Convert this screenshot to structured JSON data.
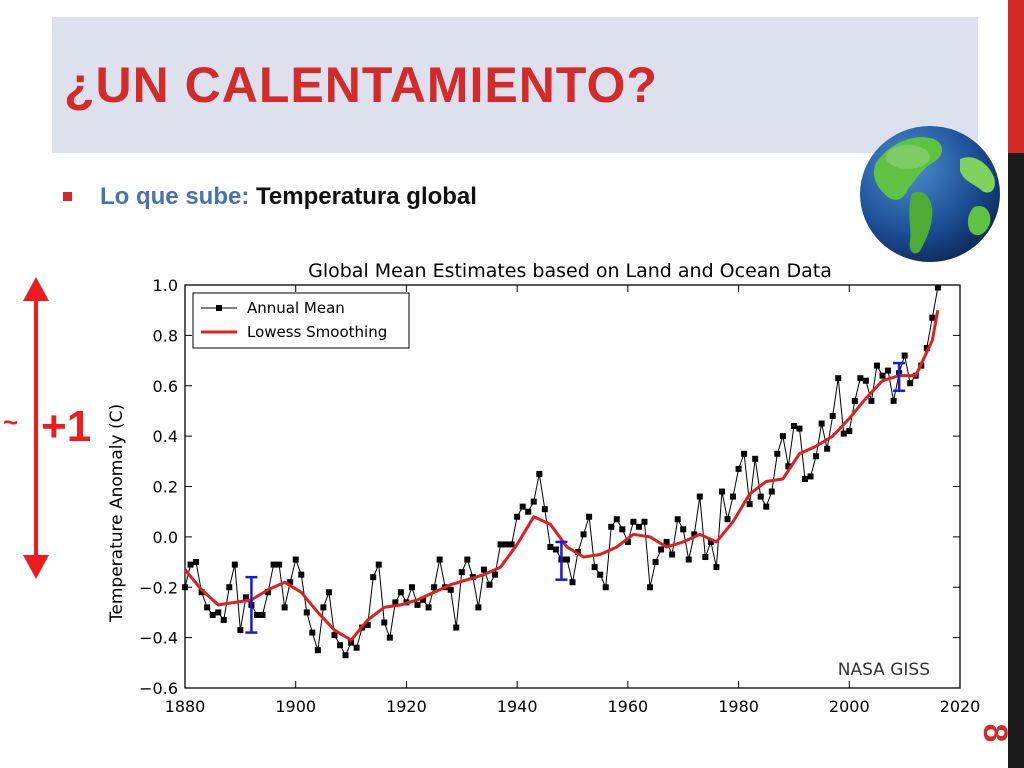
{
  "slide": {
    "title": "¿UN CALENTAMIENTO?",
    "bullet_label": "Lo que sube:",
    "bullet_value": "Temperatura global",
    "annotation_approx": "~",
    "annotation_value": "+1",
    "page_number": "8"
  },
  "colors": {
    "title": "#d42a2a",
    "title_band": "#dde1ee",
    "bullet_label": "#4a72b0",
    "arrow": "#ee1c1c",
    "annual_mean": "#000000",
    "smoothing": "#e02020",
    "error_bars": "#1a1ad8"
  },
  "icons": [
    "globe-icon",
    "double-arrow-icon",
    "bullet-square-icon"
  ],
  "chart_data": {
    "type": "line",
    "title": "Global Mean Estimates based on Land and Ocean Data",
    "xlabel": "",
    "ylabel": "Temperature Anomaly (C)",
    "xlim": [
      1880,
      2020
    ],
    "ylim": [
      -0.6,
      1.0
    ],
    "x_ticks": [
      "1880",
      "1900",
      "1920",
      "1940",
      "1960",
      "1980",
      "2000",
      "2020"
    ],
    "y_ticks": [
      "1.0",
      "0.8",
      "0.6",
      "0.4",
      "0.2",
      "0.0",
      "−0.2",
      "−0.4",
      "−0.6"
    ],
    "legend_position": "top-left",
    "grid": false,
    "credit": "NASA GISS",
    "series": [
      {
        "name": "Annual Mean",
        "style": "line-with-square-markers",
        "x": [
          1880,
          1881,
          1882,
          1883,
          1884,
          1885,
          1886,
          1887,
          1888,
          1889,
          1890,
          1891,
          1892,
          1893,
          1894,
          1895,
          1896,
          1897,
          1898,
          1899,
          1900,
          1901,
          1902,
          1903,
          1904,
          1905,
          1906,
          1907,
          1908,
          1909,
          1910,
          1911,
          1912,
          1913,
          1914,
          1915,
          1916,
          1917,
          1918,
          1919,
          1920,
          1921,
          1922,
          1923,
          1924,
          1925,
          1926,
          1927,
          1928,
          1929,
          1930,
          1931,
          1932,
          1933,
          1934,
          1935,
          1936,
          1937,
          1938,
          1939,
          1940,
          1941,
          1942,
          1943,
          1944,
          1945,
          1946,
          1947,
          1948,
          1949,
          1950,
          1951,
          1952,
          1953,
          1954,
          1955,
          1956,
          1957,
          1958,
          1959,
          1960,
          1961,
          1962,
          1963,
          1964,
          1965,
          1966,
          1967,
          1968,
          1969,
          1970,
          1971,
          1972,
          1973,
          1974,
          1975,
          1976,
          1977,
          1978,
          1979,
          1980,
          1981,
          1982,
          1983,
          1984,
          1985,
          1986,
          1987,
          1988,
          1989,
          1990,
          1991,
          1992,
          1993,
          1994,
          1995,
          1996,
          1997,
          1998,
          1999,
          2000,
          2001,
          2002,
          2003,
          2004,
          2005,
          2006,
          2007,
          2008,
          2009,
          2010,
          2011,
          2012,
          2013,
          2014,
          2015,
          2016
        ],
        "values": [
          -0.2,
          -0.11,
          -0.1,
          -0.22,
          -0.28,
          -0.31,
          -0.3,
          -0.33,
          -0.2,
          -0.11,
          -0.37,
          -0.24,
          -0.27,
          -0.31,
          -0.31,
          -0.22,
          -0.11,
          -0.11,
          -0.28,
          -0.18,
          -0.09,
          -0.15,
          -0.3,
          -0.38,
          -0.45,
          -0.28,
          -0.22,
          -0.39,
          -0.43,
          -0.47,
          -0.42,
          -0.44,
          -0.36,
          -0.35,
          -0.16,
          -0.11,
          -0.34,
          -0.4,
          -0.26,
          -0.22,
          -0.26,
          -0.2,
          -0.27,
          -0.25,
          -0.28,
          -0.2,
          -0.09,
          -0.2,
          -0.21,
          -0.36,
          -0.14,
          -0.09,
          -0.16,
          -0.28,
          -0.13,
          -0.19,
          -0.15,
          -0.03,
          -0.03,
          -0.03,
          0.08,
          0.12,
          0.1,
          0.14,
          0.25,
          0.11,
          -0.04,
          -0.05,
          -0.09,
          -0.09,
          -0.18,
          -0.06,
          0.01,
          0.08,
          -0.12,
          -0.15,
          -0.2,
          0.04,
          0.07,
          0.03,
          -0.02,
          0.06,
          0.04,
          0.06,
          -0.2,
          -0.1,
          -0.05,
          -0.02,
          -0.07,
          0.07,
          0.03,
          -0.09,
          0.01,
          0.16,
          -0.08,
          -0.02,
          -0.12,
          0.18,
          0.07,
          0.16,
          0.27,
          0.33,
          0.13,
          0.31,
          0.16,
          0.12,
          0.18,
          0.33,
          0.4,
          0.28,
          0.44,
          0.43,
          0.23,
          0.24,
          0.32,
          0.45,
          0.35,
          0.48,
          0.63,
          0.41,
          0.42,
          0.54,
          0.63,
          0.62,
          0.54,
          0.68,
          0.64,
          0.66,
          0.54,
          0.65,
          0.72,
          0.61,
          0.64,
          0.68,
          0.75,
          0.87,
          0.99
        ]
      },
      {
        "name": "Lowess Smoothing",
        "style": "line",
        "x": [
          1880,
          1883,
          1886,
          1889,
          1892,
          1895,
          1898,
          1901,
          1904,
          1907,
          1910,
          1913,
          1916,
          1919,
          1922,
          1925,
          1928,
          1931,
          1934,
          1937,
          1940,
          1943,
          1946,
          1949,
          1952,
          1955,
          1958,
          1961,
          1964,
          1967,
          1970,
          1973,
          1976,
          1979,
          1982,
          1985,
          1988,
          1991,
          1994,
          1997,
          2000,
          2003,
          2006,
          2009,
          2012,
          2015,
          2016
        ],
        "values": [
          -0.13,
          -0.21,
          -0.27,
          -0.26,
          -0.25,
          -0.21,
          -0.18,
          -0.22,
          -0.3,
          -0.37,
          -0.41,
          -0.33,
          -0.28,
          -0.27,
          -0.25,
          -0.22,
          -0.19,
          -0.17,
          -0.15,
          -0.12,
          -0.03,
          0.08,
          0.05,
          -0.04,
          -0.08,
          -0.07,
          -0.04,
          0.01,
          0.0,
          -0.04,
          -0.02,
          0.01,
          -0.02,
          0.06,
          0.17,
          0.22,
          0.23,
          0.33,
          0.36,
          0.4,
          0.47,
          0.55,
          0.62,
          0.64,
          0.64,
          0.78,
          0.9
        ]
      }
    ],
    "error_bars": [
      {
        "x": 1892,
        "low": -0.38,
        "high": -0.16
      },
      {
        "x": 1948,
        "low": -0.17,
        "high": -0.02
      },
      {
        "x": 2009,
        "low": 0.58,
        "high": 0.69
      }
    ]
  }
}
